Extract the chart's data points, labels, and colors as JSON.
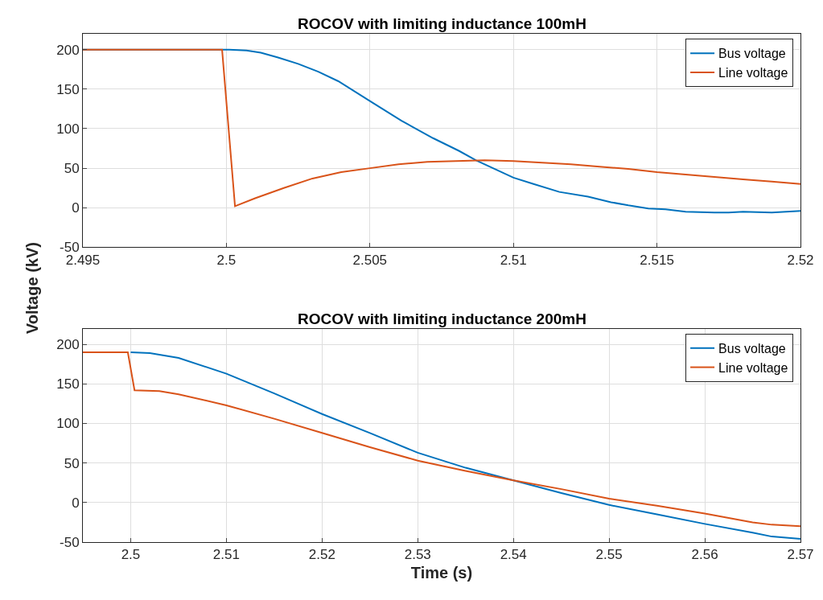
{
  "chart_data": [
    {
      "type": "line",
      "title": "ROCOV with limiting inductance 100mH",
      "ylabel": "Voltage (kV)",
      "xlim": [
        2.495,
        2.52
      ],
      "xticks": [
        2.495,
        2.5,
        2.505,
        2.51,
        2.515,
        2.52
      ],
      "ylim": [
        -50,
        220
      ],
      "yticks": [
        -50,
        0,
        50,
        100,
        150,
        200
      ],
      "grid": true,
      "legend": "top right",
      "marker": "none",
      "line_style": "solid",
      "series": [
        {
          "name": "Bus voltage",
          "color": "#0072bd",
          "x": [
            2.495,
            2.5001,
            2.5007,
            2.5012,
            2.5018,
            2.5025,
            2.5032,
            2.5039,
            2.505,
            2.5061,
            2.5072,
            2.5081,
            2.5087,
            2.51,
            2.5107,
            2.5116,
            2.5126,
            2.5134,
            2.514,
            2.5147,
            2.5153,
            2.516,
            2.517,
            2.5175,
            2.518,
            2.519,
            2.52
          ],
          "values": [
            200,
            200,
            199,
            196,
            190,
            182,
            172,
            160,
            135,
            110,
            88,
            72,
            60,
            38,
            30,
            20,
            14,
            7,
            3,
            -1,
            -2,
            -5,
            -6,
            -6,
            -5,
            -6,
            -4
          ]
        },
        {
          "name": "Line voltage",
          "color": "#d95319",
          "x": [
            2.495,
            2.4975,
            2.49985,
            2.5003,
            2.501,
            2.502,
            2.503,
            2.504,
            2.505,
            2.506,
            2.507,
            2.508,
            2.509,
            2.51,
            2.511,
            2.512,
            2.513,
            2.514,
            2.515,
            2.516,
            2.517,
            2.518,
            2.519,
            2.52
          ],
          "values": [
            200,
            200,
            200,
            2,
            12,
            25,
            37,
            45,
            50,
            55,
            58,
            59,
            60,
            59,
            57,
            55,
            52,
            49,
            45,
            42,
            39,
            36,
            33,
            30
          ]
        }
      ]
    },
    {
      "type": "line",
      "title": "ROCOV with limiting inductance 200mH",
      "xlabel": "Time (s)",
      "xlim": [
        2.495,
        2.57
      ],
      "xticks": [
        2.5,
        2.51,
        2.52,
        2.53,
        2.54,
        2.55,
        2.56,
        2.57
      ],
      "ylim": [
        -50,
        220
      ],
      "yticks": [
        -50,
        0,
        50,
        100,
        150,
        200
      ],
      "grid": true,
      "legend": "top right",
      "marker": "none",
      "line_style": "solid",
      "series": [
        {
          "name": "Bus voltage",
          "color": "#0072bd",
          "x": [
            2.5,
            2.502,
            2.505,
            2.51,
            2.515,
            2.52,
            2.525,
            2.53,
            2.535,
            2.545,
            2.55,
            2.555,
            2.56,
            2.565,
            2.567,
            2.57
          ],
          "values": [
            190,
            189,
            183,
            163,
            138,
            112,
            88,
            63,
            44,
            12,
            -3,
            -15,
            -27,
            -38,
            -43,
            -46
          ]
        },
        {
          "name": "Line voltage",
          "color": "#d95319",
          "x": [
            2.495,
            2.4975,
            2.4997,
            2.5004,
            2.503,
            2.505,
            2.51,
            2.515,
            2.52,
            2.525,
            2.53,
            2.535,
            2.54,
            2.545,
            2.55,
            2.555,
            2.56,
            2.565,
            2.567,
            2.57
          ],
          "values": [
            190,
            190,
            190,
            142,
            141,
            137,
            123,
            106,
            88,
            70,
            53,
            40,
            28,
            17,
            5,
            -4,
            -14,
            -25,
            -28,
            -30
          ]
        }
      ]
    }
  ]
}
